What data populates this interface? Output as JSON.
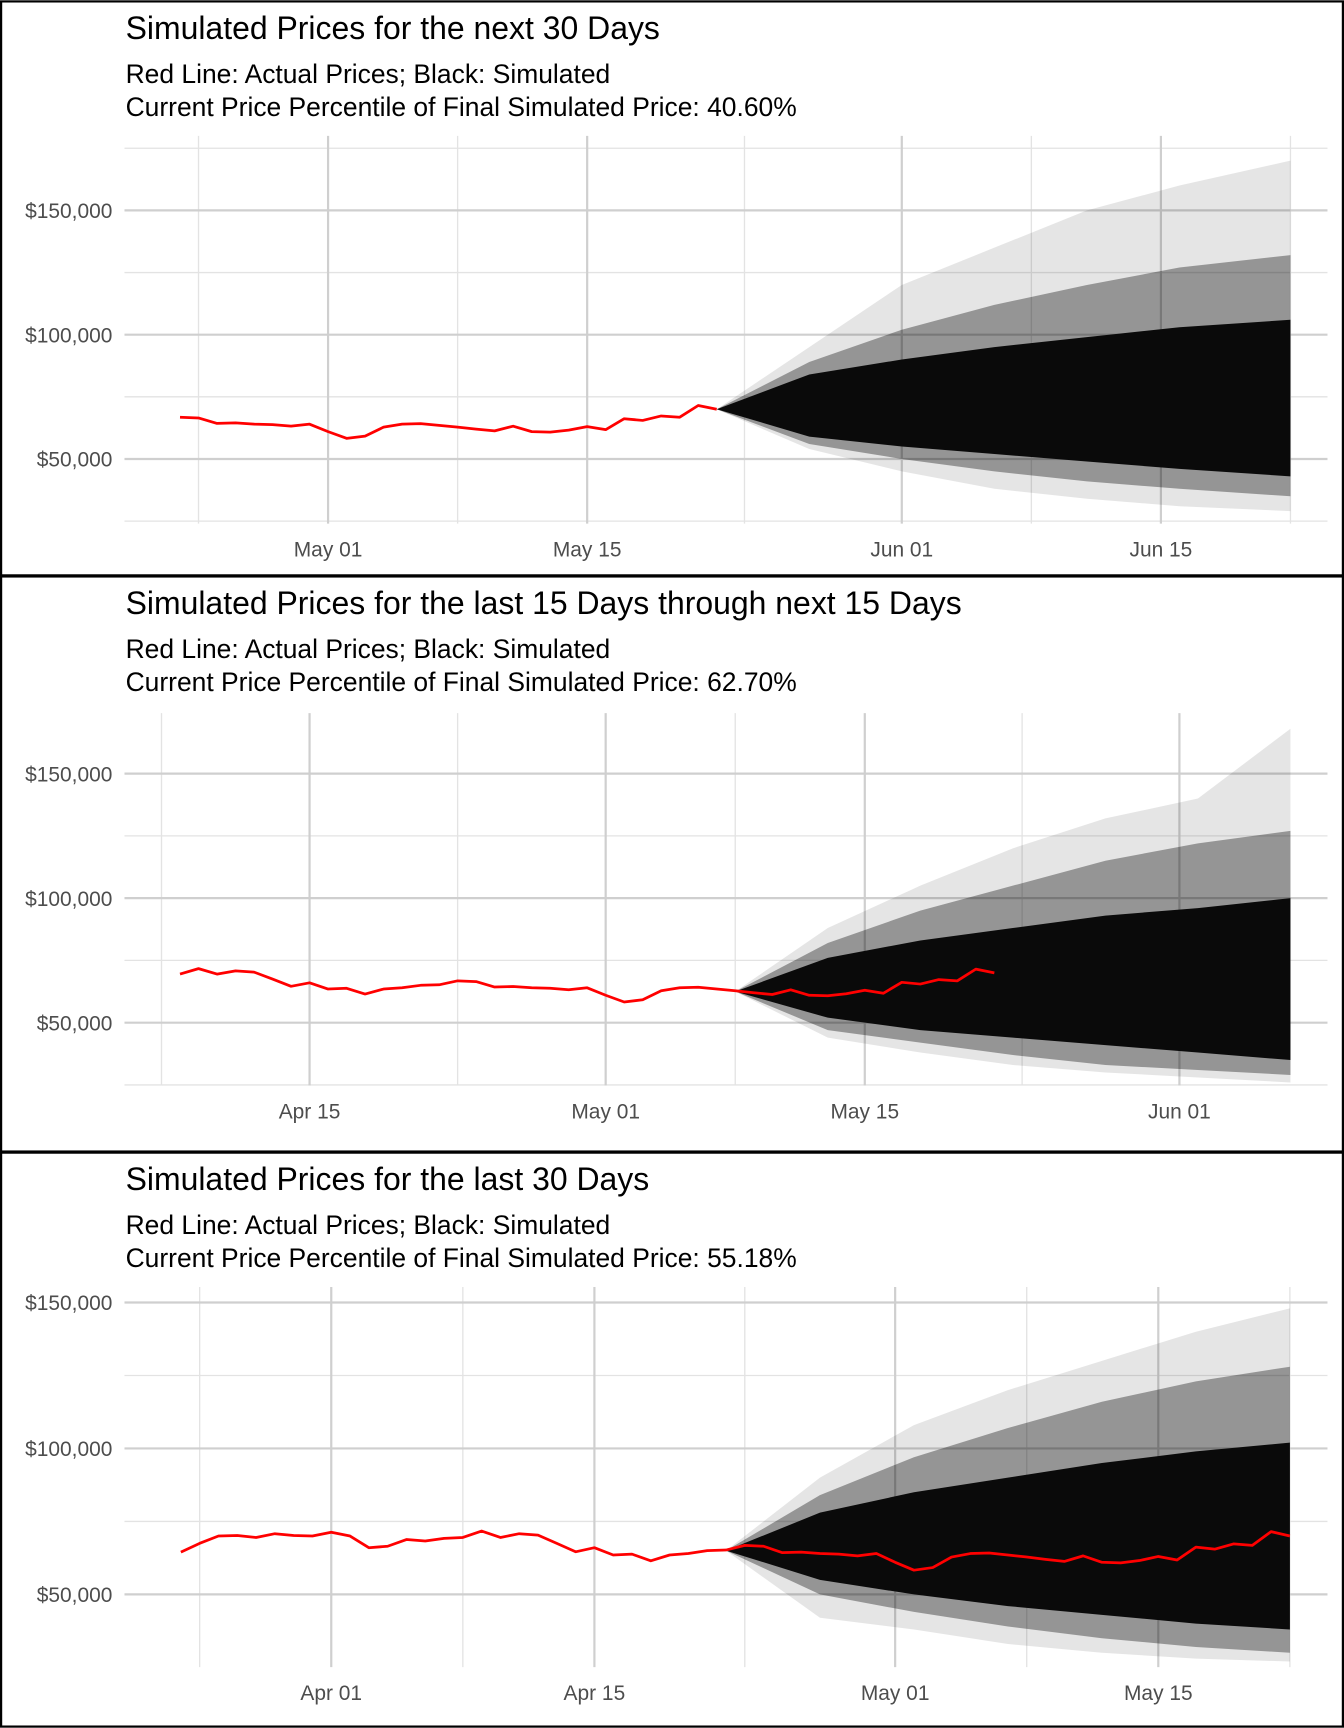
{
  "chart_data": [
    {
      "type": "line",
      "title": "Simulated Prices for the next 30 Days",
      "subtitle": [
        "Red Line: Actual Prices; Black: Simulated",
        "Current Price Percentile of Final Simulated Price: 40.60%"
      ],
      "x": [
        "Apr 23",
        "Apr 24",
        "Apr 25",
        "Apr 26",
        "Apr 27",
        "Apr 28",
        "Apr 29",
        "Apr 30",
        "May 1",
        "May 2",
        "May 3",
        "May 4",
        "May 5",
        "May 6",
        "May 7",
        "May 8",
        "May 9",
        "May 10",
        "May 11",
        "May 12",
        "May 13",
        "May 14",
        "May 15",
        "May 16",
        "May 17",
        "May 18",
        "May 19",
        "May 20",
        "May 21",
        "May 22"
      ],
      "series": [
        {
          "color": "#ff0000",
          "values": [
            66800,
            66500,
            64300,
            64500,
            64000,
            63800,
            63200,
            64000,
            61000,
            58300,
            59200,
            62800,
            64000,
            64200,
            63500,
            62800,
            62000,
            61300,
            63200,
            61000,
            60800,
            61600,
            63000,
            61800,
            66200,
            65500,
            67300,
            66800,
            71500,
            70000
          ]
        }
      ],
      "bands": [
        {
          "color": "#000000",
          "opacity": 0.1,
          "x": [
            "May 22",
            "May 27",
            "Jun 1",
            "Jun 6",
            "Jun 11",
            "Jun 16",
            "Jun 22"
          ],
          "upper": [
            70000,
            95000,
            120000,
            135000,
            150000,
            160000,
            170000
          ],
          "lower": [
            70000,
            54000,
            45000,
            38000,
            34000,
            31000,
            29000
          ]
        },
        {
          "color": "#000000",
          "opacity": 0.35,
          "x": [
            "May 22",
            "May 27",
            "Jun 1",
            "Jun 6",
            "Jun 11",
            "Jun 16",
            "Jun 22"
          ],
          "upper": [
            70000,
            89000,
            102000,
            112000,
            120000,
            127000,
            132000
          ],
          "lower": [
            70000,
            56000,
            50000,
            45000,
            41000,
            38000,
            35000
          ]
        },
        {
          "color": "#0a0a0a",
          "opacity": 1,
          "x": [
            "May 22",
            "May 27",
            "Jun 1",
            "Jun 6",
            "Jun 11",
            "Jun 16",
            "Jun 22"
          ],
          "upper": [
            70000,
            84000,
            90000,
            95000,
            99000,
            103000,
            106000
          ],
          "lower": [
            70000,
            59000,
            55000,
            52000,
            49000,
            46000,
            43000
          ]
        }
      ],
      "xlim": [
        "Apr 20",
        "Jun 24"
      ],
      "xticks": [
        {
          "value": "May 1",
          "label": "May 01"
        },
        {
          "value": "May 15",
          "label": "May 15"
        },
        {
          "value": "Jun 1",
          "label": "Jun 01"
        },
        {
          "value": "Jun 15",
          "label": "Jun 15"
        }
      ],
      "ylim": [
        24000,
        180000
      ],
      "yticks": [
        {
          "value": 50000,
          "label": "$50,000"
        },
        {
          "value": 100000,
          "label": "$100,000"
        },
        {
          "value": 150000,
          "label": "$150,000"
        }
      ],
      "grid": true
    },
    {
      "type": "line",
      "title": "Simulated Prices for the last 15 Days through next 15 Days",
      "subtitle": [
        "Red Line: Actual Prices; Black: Simulated",
        "Current Price Percentile of Final Simulated Price: 62.70%"
      ],
      "x": [
        "Apr 8",
        "Apr 9",
        "Apr 10",
        "Apr 11",
        "Apr 12",
        "Apr 13",
        "Apr 14",
        "Apr 15",
        "Apr 16",
        "Apr 17",
        "Apr 18",
        "Apr 19",
        "Apr 20",
        "Apr 21",
        "Apr 22",
        "Apr 23",
        "Apr 24",
        "Apr 25",
        "Apr 26",
        "Apr 27",
        "Apr 28",
        "Apr 29",
        "Apr 30",
        "May 1",
        "May 2",
        "May 3",
        "May 4",
        "May 5",
        "May 6",
        "May 7",
        "May 8",
        "May 9",
        "May 10",
        "May 11",
        "May 12",
        "May 13",
        "May 14",
        "May 15",
        "May 16",
        "May 17",
        "May 18",
        "May 19",
        "May 20",
        "May 21",
        "May 22"
      ],
      "series": [
        {
          "color": "#ff0000",
          "values": [
            69500,
            71700,
            69500,
            70800,
            70300,
            67500,
            64600,
            66000,
            63500,
            63800,
            61500,
            63500,
            64000,
            65000,
            65200,
            66800,
            66500,
            64300,
            64500,
            64000,
            63800,
            63200,
            64000,
            61000,
            58300,
            59200,
            62800,
            64000,
            64200,
            63500,
            62800,
            62000,
            61300,
            63200,
            61000,
            60800,
            61600,
            63000,
            61800,
            66200,
            65500,
            67300,
            66800,
            71500,
            70000
          ]
        }
      ],
      "bands": [
        {
          "color": "#000000",
          "opacity": 0.1,
          "x": [
            "May 8",
            "May 13",
            "May 18",
            "May 23",
            "May 28",
            "Jun 2",
            "Jun 7"
          ],
          "upper": [
            62500,
            88000,
            105000,
            120000,
            132000,
            140000,
            168000
          ],
          "lower": [
            62500,
            44000,
            38000,
            33000,
            30000,
            28000,
            26000
          ]
        },
        {
          "color": "#000000",
          "opacity": 0.35,
          "x": [
            "May 8",
            "May 13",
            "May 18",
            "May 23",
            "May 28",
            "Jun 2",
            "Jun 7"
          ],
          "upper": [
            62500,
            82000,
            95000,
            105000,
            115000,
            122000,
            127000
          ],
          "lower": [
            62500,
            47000,
            42000,
            37000,
            33000,
            31000,
            29000
          ]
        },
        {
          "color": "#0a0a0a",
          "opacity": 1,
          "x": [
            "May 8",
            "May 13",
            "May 18",
            "May 23",
            "May 28",
            "Jun 2",
            "Jun 7"
          ],
          "upper": [
            62500,
            76000,
            83000,
            88000,
            93000,
            96000,
            100000
          ],
          "lower": [
            62500,
            52000,
            47000,
            44000,
            41000,
            38000,
            35000
          ]
        }
      ],
      "xlim": [
        "Apr 5",
        "Jun 9"
      ],
      "xticks": [
        {
          "value": "Apr 15",
          "label": "Apr 15"
        },
        {
          "value": "May 1",
          "label": "May 01"
        },
        {
          "value": "May 15",
          "label": "May 15"
        },
        {
          "value": "Jun 1",
          "label": "Jun 01"
        }
      ],
      "ylim": [
        24800,
        174300
      ],
      "yticks": [
        {
          "value": 50000,
          "label": "$50,000"
        },
        {
          "value": 100000,
          "label": "$100,000"
        },
        {
          "value": 150000,
          "label": "$150,000"
        }
      ],
      "grid": true
    },
    {
      "type": "line",
      "title": "Simulated Prices for the last 30 Days",
      "subtitle": [
        "Red Line: Actual Prices; Black: Simulated",
        "Current Price Percentile of Final Simulated Price: 55.18%"
      ],
      "x": [
        "Mar 24",
        "Mar 25",
        "Mar 26",
        "Mar 27",
        "Mar 28",
        "Mar 29",
        "Mar 30",
        "Mar 31",
        "Apr 1",
        "Apr 2",
        "Apr 3",
        "Apr 4",
        "Apr 5",
        "Apr 6",
        "Apr 7",
        "Apr 8",
        "Apr 9",
        "Apr 10",
        "Apr 11",
        "Apr 12",
        "Apr 13",
        "Apr 14",
        "Apr 15",
        "Apr 16",
        "Apr 17",
        "Apr 18",
        "Apr 19",
        "Apr 20",
        "Apr 21",
        "Apr 22",
        "Apr 23",
        "Apr 24",
        "Apr 25",
        "Apr 26",
        "Apr 27",
        "Apr 28",
        "Apr 29",
        "Apr 30",
        "May 1",
        "May 2",
        "May 3",
        "May 4",
        "May 5",
        "May 6",
        "May 7",
        "May 8",
        "May 9",
        "May 10",
        "May 11",
        "May 12",
        "May 13",
        "May 14",
        "May 15",
        "May 16",
        "May 17",
        "May 18",
        "May 19",
        "May 20",
        "May 21",
        "May 22"
      ],
      "series": [
        {
          "color": "#ff0000",
          "values": [
            64500,
            67500,
            70000,
            70200,
            69500,
            70800,
            70200,
            70000,
            71300,
            70000,
            66000,
            66500,
            68800,
            68300,
            69200,
            69500,
            71700,
            69500,
            70800,
            70300,
            67500,
            64600,
            66000,
            63500,
            63800,
            61500,
            63500,
            64000,
            65000,
            65200,
            66800,
            66500,
            64300,
            64500,
            64000,
            63800,
            63200,
            64000,
            61000,
            58300,
            59200,
            62800,
            64000,
            64200,
            63500,
            62800,
            62000,
            61300,
            63200,
            61000,
            60800,
            61600,
            63000,
            61800,
            66200,
            65500,
            67300,
            66800,
            71500,
            70000
          ]
        }
      ],
      "bands": [
        {
          "color": "#000000",
          "opacity": 0.1,
          "x": [
            "Apr 22",
            "Apr 27",
            "May 2",
            "May 7",
            "May 12",
            "May 17",
            "May 22"
          ],
          "upper": [
            65000,
            90000,
            108000,
            120000,
            130000,
            140000,
            148000
          ],
          "lower": [
            65000,
            42000,
            38000,
            33000,
            30000,
            28000,
            27000
          ]
        },
        {
          "color": "#000000",
          "opacity": 0.35,
          "x": [
            "Apr 22",
            "Apr 27",
            "May 2",
            "May 7",
            "May 12",
            "May 17",
            "May 22"
          ],
          "upper": [
            65000,
            84000,
            97000,
            107000,
            116000,
            123000,
            128000
          ],
          "lower": [
            65000,
            50000,
            44000,
            39000,
            35000,
            32000,
            30000
          ]
        },
        {
          "color": "#0a0a0a",
          "opacity": 1,
          "x": [
            "Apr 22",
            "Apr 27",
            "May 2",
            "May 7",
            "May 12",
            "May 17",
            "May 22"
          ],
          "upper": [
            65000,
            78000,
            85000,
            90000,
            95000,
            99000,
            102000
          ],
          "lower": [
            65000,
            55000,
            50000,
            46000,
            43000,
            40000,
            38000
          ]
        }
      ],
      "xlim": [
        "Mar 21",
        "May 24"
      ],
      "xticks": [
        {
          "value": "Apr 1",
          "label": "Apr 01"
        },
        {
          "value": "Apr 15",
          "label": "Apr 15"
        },
        {
          "value": "May 1",
          "label": "May 01"
        },
        {
          "value": "May 15",
          "label": "May 15"
        }
      ],
      "ylim": [
        25100,
        155300
      ],
      "yticks": [
        {
          "value": 50000,
          "label": "$50,000"
        },
        {
          "value": 100000,
          "label": "$100,000"
        },
        {
          "value": 150000,
          "label": "$150,000"
        }
      ],
      "grid": true
    }
  ]
}
